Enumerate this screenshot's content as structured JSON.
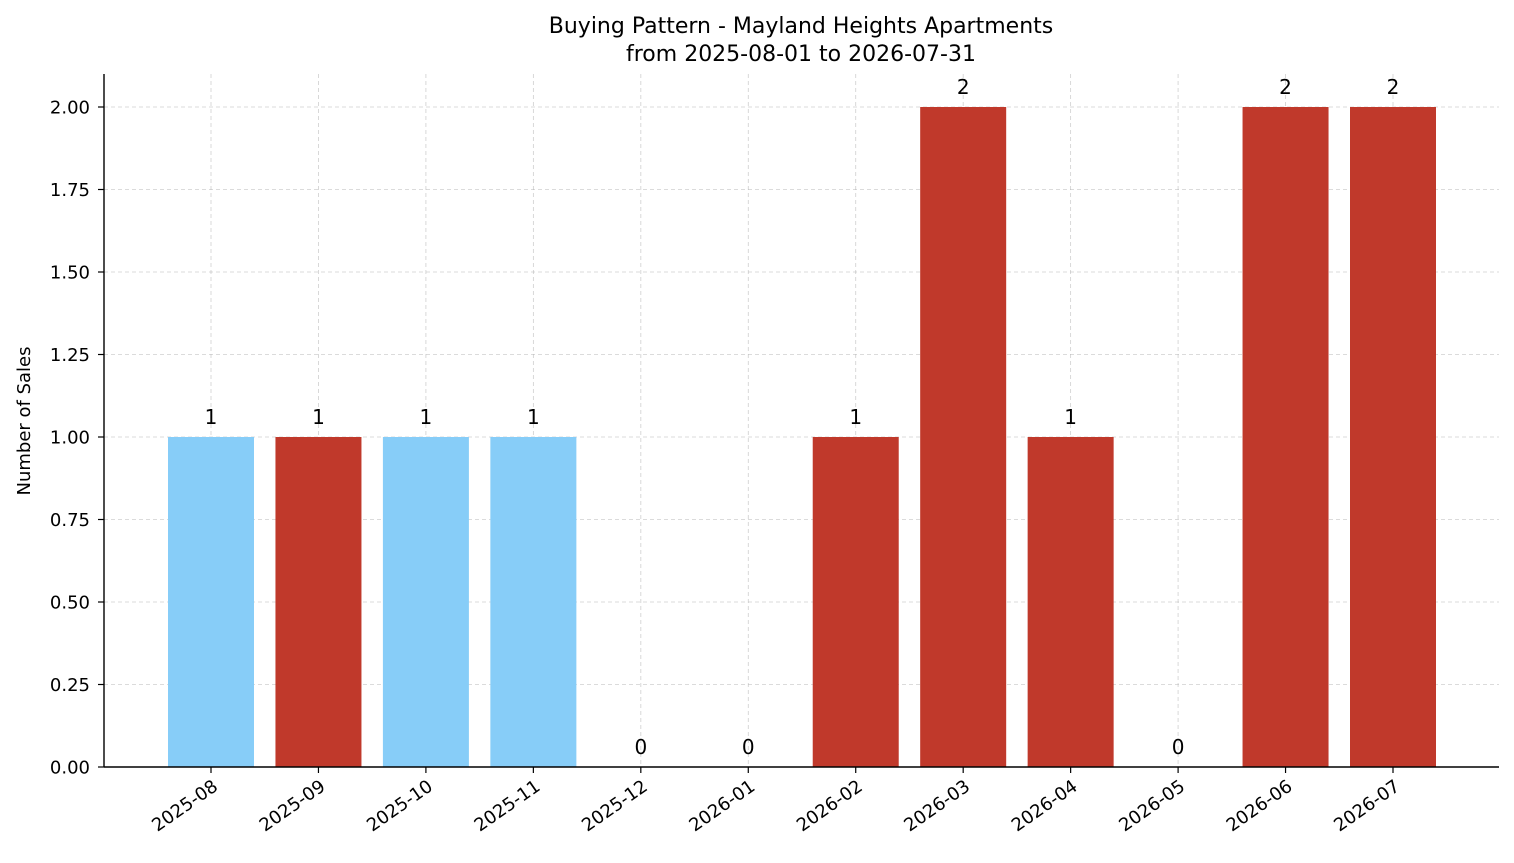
{
  "chart_data": {
    "type": "bar",
    "title": "Buying Pattern - Mayland Heights Apartments",
    "subtitle": "from 2025-08-01 to 2026-07-31",
    "xlabel": "",
    "ylabel": "Number of Sales",
    "ylim": [
      0,
      2.1
    ],
    "yticks": [
      "0.00",
      "0.25",
      "0.50",
      "0.75",
      "1.00",
      "1.25",
      "1.50",
      "1.75",
      "2.00"
    ],
    "ytick_values": [
      0,
      0.25,
      0.5,
      0.75,
      1.0,
      1.25,
      1.5,
      1.75,
      2.0
    ],
    "grid": true,
    "categories": [
      "2025-08",
      "2025-09",
      "2025-10",
      "2025-11",
      "2025-12",
      "2026-01",
      "2026-02",
      "2026-03",
      "2026-04",
      "2026-05",
      "2026-06",
      "2026-07"
    ],
    "values": [
      1,
      1,
      1,
      1,
      0,
      0,
      1,
      2,
      1,
      0,
      2,
      2
    ],
    "data_labels": [
      "1",
      "1",
      "1",
      "1",
      "0",
      "0",
      "1",
      "2",
      "1",
      "0",
      "2",
      "2"
    ],
    "bar_colors": [
      "#87cdf8",
      "#c0392b",
      "#87cdf8",
      "#87cdf8",
      "#c0392b",
      "#c0392b",
      "#c0392b",
      "#c0392b",
      "#c0392b",
      "#c0392b",
      "#c0392b",
      "#c0392b"
    ]
  }
}
